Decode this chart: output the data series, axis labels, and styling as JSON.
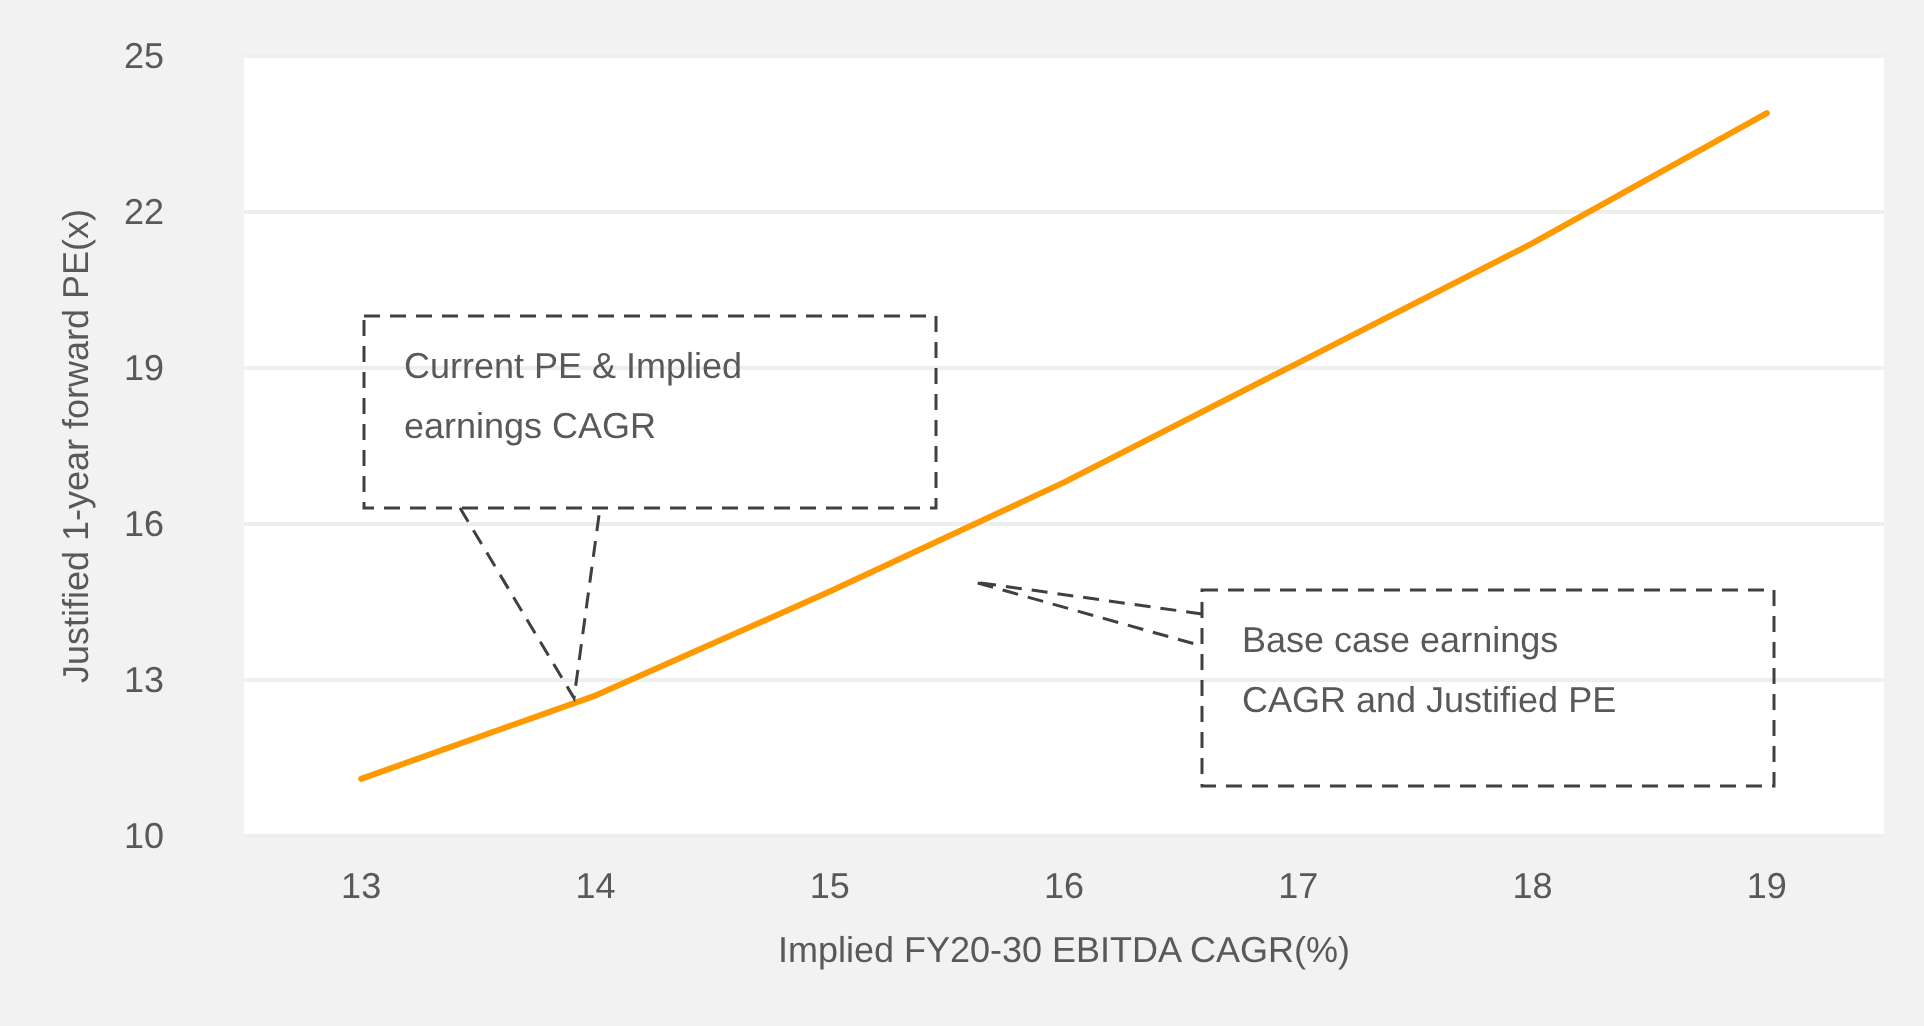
{
  "chart_data": {
    "type": "line",
    "xlabel": "Implied FY20-30 EBITDA CAGR(%)",
    "ylabel": "Justified 1-year forward PE(x)",
    "categories": [
      "13",
      "14",
      "15",
      "16",
      "17",
      "18",
      "19"
    ],
    "series": [
      {
        "color": "#ff9900",
        "values": [
          11.1,
          12.7,
          14.7,
          16.8,
          19.1,
          21.4,
          23.9
        ]
      }
    ],
    "ylim": [
      10,
      25
    ],
    "yticks": [
      10,
      13,
      16,
      19,
      22,
      25
    ],
    "grid": "y",
    "marker": "none",
    "line_style": "solid",
    "annotations": [
      "Current PE & Implied earnings CAGR",
      "Base case earnings CAGR and Justified PE"
    ]
  }
}
